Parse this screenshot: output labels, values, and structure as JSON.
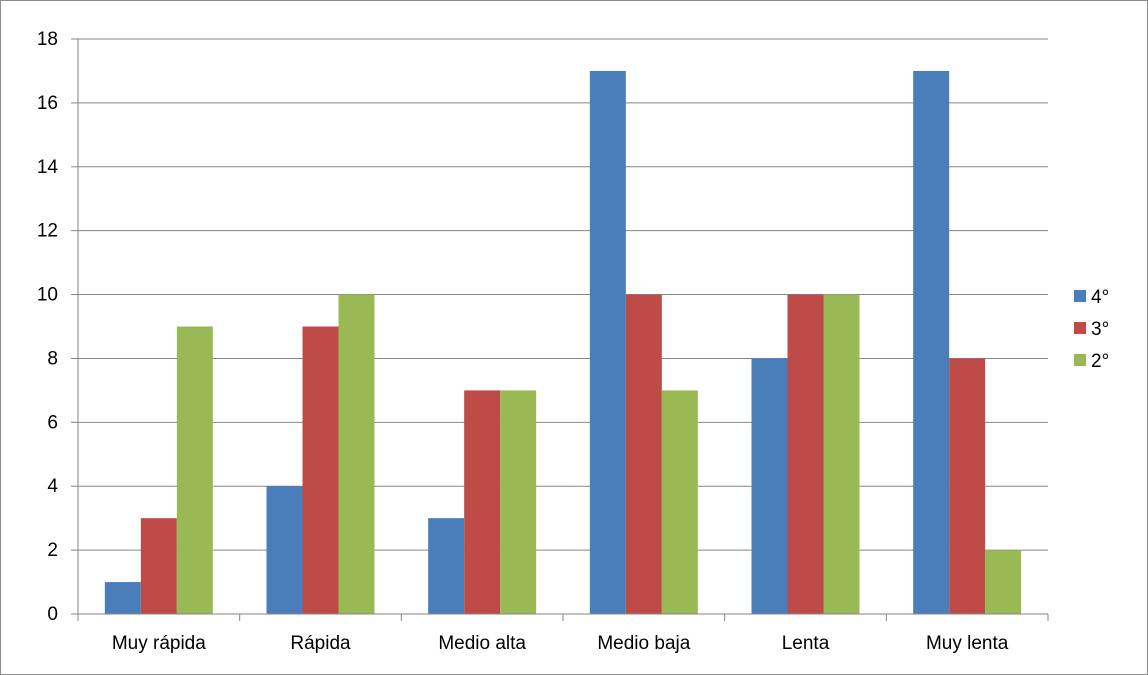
{
  "chart_data": {
    "type": "bar",
    "title": "",
    "xlabel": "",
    "ylabel": "",
    "categories": [
      "Muy rápida",
      "Rápida",
      "Medio alta",
      "Medio baja",
      "Lenta",
      "Muy lenta"
    ],
    "series": [
      {
        "name": "4°",
        "color": "#4a7ebb",
        "values": [
          1,
          4,
          3,
          17,
          8,
          17
        ]
      },
      {
        "name": "3°",
        "color": "#be4b48",
        "values": [
          3,
          9,
          7,
          10,
          10,
          8
        ]
      },
      {
        "name": "2°",
        "color": "#98b954",
        "values": [
          9,
          10,
          7,
          7,
          10,
          2
        ]
      }
    ],
    "ylim": [
      0,
      18
    ],
    "yticks": [
      0,
      2,
      4,
      6,
      8,
      10,
      12,
      14,
      16,
      18
    ],
    "ytick_labels": [
      "0",
      "2",
      "4",
      "6",
      "8",
      "10",
      "12",
      "14",
      "16",
      "18"
    ],
    "grid": true,
    "legend_position": "right"
  }
}
